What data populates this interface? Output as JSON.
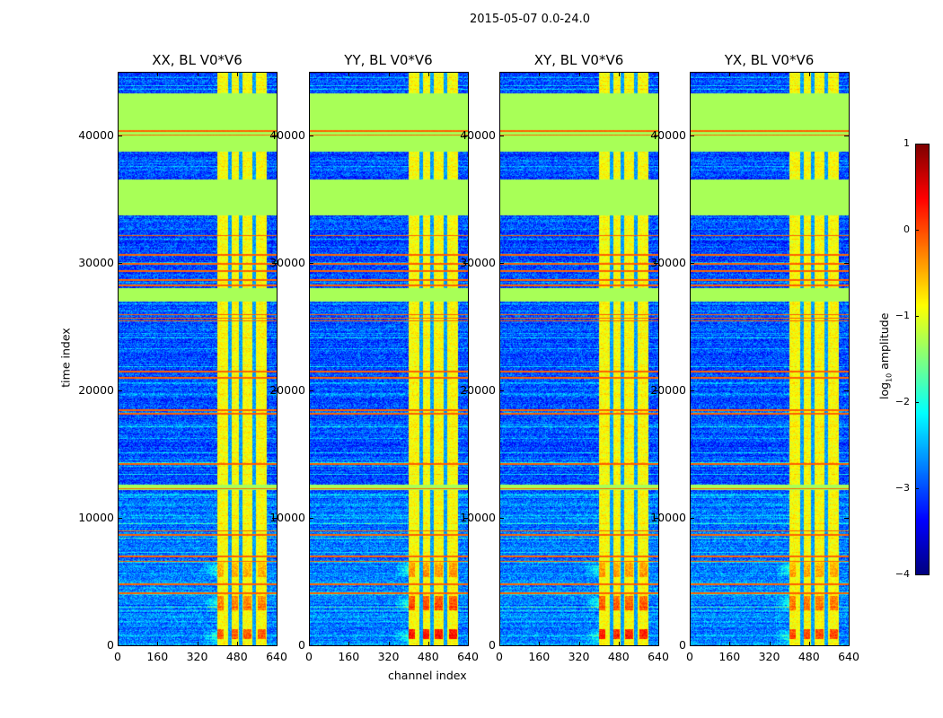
{
  "chart_data": {
    "type": "heatmap",
    "title": "2015-05-07 0.0-24.0",
    "xlabel": "channel index",
    "ylabel": "time index",
    "xlim": [
      0,
      640
    ],
    "ylim": [
      0,
      45000
    ],
    "xticks": [
      0,
      160,
      320,
      480,
      640
    ],
    "yticks": [
      0,
      10000,
      20000,
      30000,
      40000
    ],
    "panels": [
      {
        "title": "XX, BL V0*V6",
        "hotspot_strength": 0.8
      },
      {
        "title": "YY, BL V0*V6",
        "hotspot_strength": 1.2
      },
      {
        "title": "XY, BL V0*V6",
        "hotspot_strength": 1.1
      },
      {
        "title": "YX, BL V0*V6",
        "hotspot_strength": 0.9
      }
    ],
    "colorbar": {
      "label": "log10 amplitude",
      "label_main": "log",
      "label_sub": "10",
      "label_rest": " amplitude",
      "colormap": "jet",
      "vmin": -4,
      "vmax": 1,
      "ticks": [
        1,
        0,
        -1,
        -2,
        -3,
        -4
      ],
      "tick_labels": [
        "1",
        "0",
        "−1",
        "−2",
        "−3",
        "−4"
      ]
    },
    "features": {
      "flagged_blocks_time": [
        [
          38800,
          43400
        ],
        [
          33800,
          36600
        ],
        [
          27000,
          28100
        ],
        [
          12200,
          12600
        ]
      ],
      "flagged_value": -1.3,
      "rfi_lines_time": [
        40100,
        40400,
        32200,
        30700,
        30000,
        29400,
        28700,
        28300,
        26000,
        25500,
        25700,
        21500,
        21000,
        18500,
        18200,
        14250,
        12300,
        9000,
        8700,
        7000,
        6600,
        4800,
        4100
      ],
      "rfi_line_value": -0.1,
      "rfi_channels": [
        400,
        600
      ],
      "rfi_channel_gaps": [
        452,
        495,
        550
      ],
      "background_value": -3.0,
      "hotspot_time_range": [
        500,
        6500
      ]
    }
  }
}
